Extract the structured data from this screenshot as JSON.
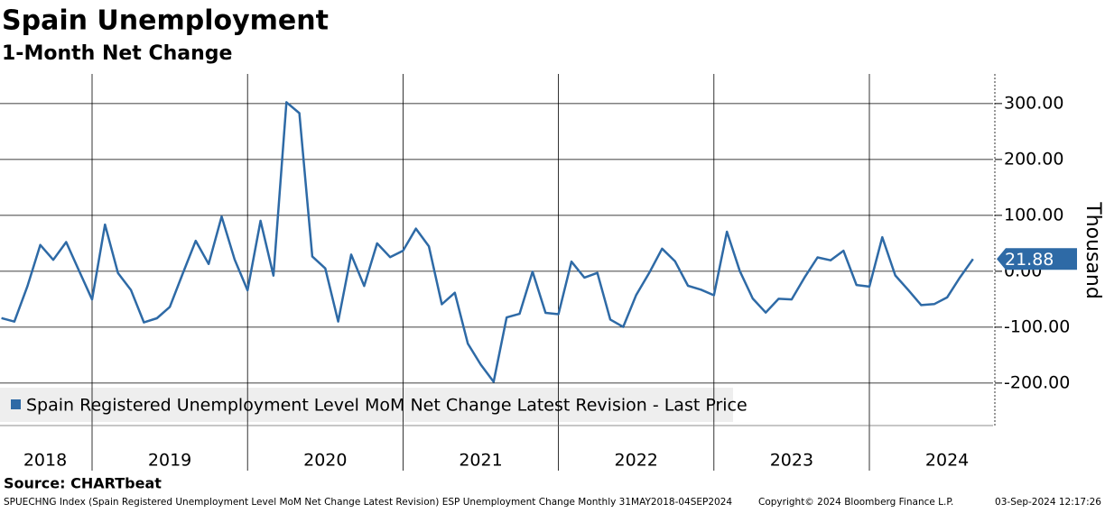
{
  "chart_data": {
    "type": "line",
    "title": "Spain Unemployment",
    "subtitle": "1-Month Net Change",
    "y_axis_label": "Thousand",
    "source": "Source: CHARTbeat",
    "footer_left": "SPUECHNG Index (Spain Registered Unemployment Level MoM Net Change Latest Revision) ESP Unemployment Change  Monthly 31MAY2018-04SEP2024",
    "footer_copyright": "Copyright© 2024 Bloomberg Finance L.P.",
    "footer_date": "03-Sep-2024 12:17:26",
    "x": [
      "2018-05",
      "2018-06",
      "2018-07",
      "2018-08",
      "2018-09",
      "2018-10",
      "2018-11",
      "2018-12",
      "2019-01",
      "2019-02",
      "2019-03",
      "2019-04",
      "2019-05",
      "2019-06",
      "2019-07",
      "2019-08",
      "2019-09",
      "2019-10",
      "2019-11",
      "2019-12",
      "2020-01",
      "2020-02",
      "2020-03",
      "2020-04",
      "2020-05",
      "2020-06",
      "2020-07",
      "2020-08",
      "2020-09",
      "2020-10",
      "2020-11",
      "2020-12",
      "2021-01",
      "2021-02",
      "2021-03",
      "2021-04",
      "2021-05",
      "2021-06",
      "2021-07",
      "2021-08",
      "2021-09",
      "2021-10",
      "2021-11",
      "2021-12",
      "2022-01",
      "2022-02",
      "2022-03",
      "2022-04",
      "2022-05",
      "2022-06",
      "2022-07",
      "2022-08",
      "2022-09",
      "2022-10",
      "2022-11",
      "2022-12",
      "2023-01",
      "2023-02",
      "2023-03",
      "2023-04",
      "2023-05",
      "2023-06",
      "2023-07",
      "2023-08",
      "2023-09",
      "2023-10",
      "2023-11",
      "2023-12",
      "2024-01",
      "2024-02",
      "2024-03",
      "2024-04",
      "2024-05",
      "2024-06",
      "2024-07",
      "2024-08"
    ],
    "x_years": [
      "2018",
      "2019",
      "2020",
      "2021",
      "2022",
      "2023",
      "2024"
    ],
    "series": [
      {
        "name": "Spain Registered Unemployment Level MoM Net Change Latest Revision - Last Price",
        "color": "#2e6aa6",
        "values": [
          -83.7,
          -89.97,
          -27.1,
          47.0,
          20.4,
          52.2,
          0.5,
          -50.6,
          83.5,
          -3.3,
          -33.8,
          -91.5,
          -84.1,
          -63.8,
          -4.3,
          54.4,
          13.0,
          97.9,
          21.1,
          -34.0,
          90.2,
          -7.8,
          302.4,
          282.9,
          26.6,
          5.1,
          -89.8,
          29.8,
          -26.3,
          50.0,
          25.3,
          36.8,
          76.2,
          44.4,
          -59.1,
          -38.5,
          -129.4,
          -166.9,
          -197.8,
          -82.6,
          -76.1,
          -0.7,
          -74.4,
          -76.8,
          17.2,
          -11.4,
          -2.9,
          -86.3,
          -99.5,
          -42.4,
          -3.2,
          40.4,
          17.7,
          -26.0,
          -33.0,
          -43.0,
          70.7,
          0.3,
          -48.8,
          -73.9,
          -49.3,
          -50.3,
          -10.9,
          24.8,
          19.7,
          36.8,
          -24.6,
          -27.4,
          60.9,
          -7.4,
          -33.4,
          -60.5,
          -58.7,
          -46.8,
          -10.8,
          21.88
        ]
      }
    ],
    "ylim": [
      -276,
      353
    ],
    "yticks": [
      {
        "value": -200,
        "label": "-200.00"
      },
      {
        "value": -100,
        "label": "-100.00"
      },
      {
        "value": 0,
        "label": "0.00"
      },
      {
        "value": 100,
        "label": "100.00"
      },
      {
        "value": 200,
        "label": "200.00"
      },
      {
        "value": 300,
        "label": "300.00"
      }
    ],
    "grid": true
  }
}
